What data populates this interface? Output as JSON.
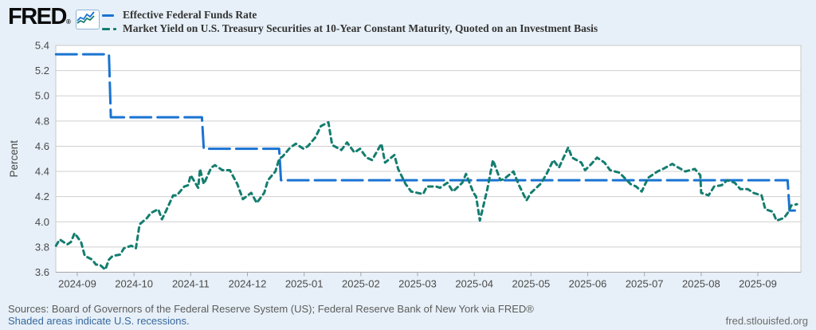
{
  "logo": {
    "text": "FRED",
    "reg": "®",
    "icon": "fred-sparkline-icon"
  },
  "legend": [
    {
      "label": "Effective Federal Funds Rate"
    },
    {
      "label": "Market Yield on U.S. Treasury Securities at 10-Year Constant Maturity, Quoted on an Investment Basis"
    }
  ],
  "footer": {
    "sources": "Sources: Board of Governors of the Federal Reserve System (US); Federal Reserve Bank of New York via FRED®",
    "recession_link": "Shaded areas indicate U.S. recessions.",
    "site": "fred.stlouisfed.org"
  },
  "colors": {
    "effr_blue": "#1a73d2",
    "treasury_teal": "#147d6f",
    "page_bg": "#e7f0f8",
    "plot_bg": "#ffffff",
    "gridline": "#cfcfcf",
    "axis_text": "#4a4a4a"
  },
  "chart_data": {
    "type": "line",
    "ylabel": "Percent",
    "ylim": [
      3.6,
      5.4
    ],
    "y_ticks": [
      3.6,
      3.8,
      4.0,
      4.2,
      4.4,
      4.6,
      4.8,
      5.0,
      5.2,
      5.4
    ],
    "x_ticks": [
      "2024-09",
      "2024-10",
      "2024-11",
      "2024-12",
      "2025-01",
      "2025-02",
      "2025-03",
      "2025-04",
      "2025-05",
      "2025-06",
      "2025-07",
      "2025-08",
      "2025-09"
    ],
    "x_range": [
      "2024-08-20",
      "2025-09-22"
    ],
    "grid": true,
    "legend_position": "top-left",
    "series": [
      {
        "name": "Effective Federal Funds Rate",
        "color": "#1a73d2",
        "style": "long-dash",
        "points": [
          [
            "2024-08-20",
            5.33
          ],
          [
            "2024-09-18",
            5.33
          ],
          [
            "2024-09-19",
            4.83
          ],
          [
            "2024-11-07",
            4.83
          ],
          [
            "2024-11-08",
            4.58
          ],
          [
            "2024-12-18",
            4.58
          ],
          [
            "2024-12-19",
            4.33
          ],
          [
            "2025-09-17",
            4.33
          ],
          [
            "2025-09-18",
            4.09
          ],
          [
            "2025-09-22",
            4.09
          ]
        ]
      },
      {
        "name": "Market Yield on U.S. Treasury Securities at 10-Year Constant Maturity, Quoted on an Investment Basis",
        "color": "#147d6f",
        "style": "short-dash",
        "points": [
          [
            "2024-08-20",
            3.81
          ],
          [
            "2024-08-22",
            3.86
          ],
          [
            "2024-08-26",
            3.82
          ],
          [
            "2024-08-28",
            3.84
          ],
          [
            "2024-08-30",
            3.91
          ],
          [
            "2024-09-03",
            3.84
          ],
          [
            "2024-09-05",
            3.73
          ],
          [
            "2024-09-09",
            3.7
          ],
          [
            "2024-09-11",
            3.66
          ],
          [
            "2024-09-13",
            3.66
          ],
          [
            "2024-09-16",
            3.62
          ],
          [
            "2024-09-18",
            3.7
          ],
          [
            "2024-09-20",
            3.73
          ],
          [
            "2024-09-24",
            3.74
          ],
          [
            "2024-09-26",
            3.79
          ],
          [
            "2024-09-30",
            3.81
          ],
          [
            "2024-10-02",
            3.79
          ],
          [
            "2024-10-04",
            3.98
          ],
          [
            "2024-10-08",
            4.03
          ],
          [
            "2024-10-10",
            4.07
          ],
          [
            "2024-10-14",
            4.1
          ],
          [
            "2024-10-16",
            4.02
          ],
          [
            "2024-10-18",
            4.08
          ],
          [
            "2024-10-22",
            4.21
          ],
          [
            "2024-10-24",
            4.21
          ],
          [
            "2024-10-28",
            4.28
          ],
          [
            "2024-10-30",
            4.29
          ],
          [
            "2024-11-01",
            4.37
          ],
          [
            "2024-11-05",
            4.27
          ],
          [
            "2024-11-06",
            4.42
          ],
          [
            "2024-11-08",
            4.3
          ],
          [
            "2024-11-12",
            4.43
          ],
          [
            "2024-11-14",
            4.45
          ],
          [
            "2024-11-18",
            4.41
          ],
          [
            "2024-11-20",
            4.41
          ],
          [
            "2024-11-22",
            4.41
          ],
          [
            "2024-11-26",
            4.3
          ],
          [
            "2024-11-29",
            4.18
          ],
          [
            "2024-12-03",
            4.23
          ],
          [
            "2024-12-06",
            4.15
          ],
          [
            "2024-12-10",
            4.23
          ],
          [
            "2024-12-12",
            4.33
          ],
          [
            "2024-12-16",
            4.4
          ],
          [
            "2024-12-18",
            4.5
          ],
          [
            "2024-12-20",
            4.52
          ],
          [
            "2024-12-24",
            4.59
          ],
          [
            "2024-12-27",
            4.62
          ],
          [
            "2024-12-31",
            4.58
          ],
          [
            "2025-01-03",
            4.6
          ],
          [
            "2025-01-07",
            4.67
          ],
          [
            "2025-01-10",
            4.76
          ],
          [
            "2025-01-14",
            4.79
          ],
          [
            "2025-01-16",
            4.61
          ],
          [
            "2025-01-21",
            4.57
          ],
          [
            "2025-01-24",
            4.63
          ],
          [
            "2025-01-28",
            4.55
          ],
          [
            "2025-01-31",
            4.58
          ],
          [
            "2025-02-04",
            4.51
          ],
          [
            "2025-02-07",
            4.49
          ],
          [
            "2025-02-12",
            4.62
          ],
          [
            "2025-02-14",
            4.47
          ],
          [
            "2025-02-19",
            4.53
          ],
          [
            "2025-02-21",
            4.42
          ],
          [
            "2025-02-25",
            4.3
          ],
          [
            "2025-02-28",
            4.24
          ],
          [
            "2025-03-04",
            4.22
          ],
          [
            "2025-03-06",
            4.28
          ],
          [
            "2025-03-11",
            4.28
          ],
          [
            "2025-03-13",
            4.27
          ],
          [
            "2025-03-17",
            4.31
          ],
          [
            "2025-03-20",
            4.24
          ],
          [
            "2025-03-25",
            4.31
          ],
          [
            "2025-03-27",
            4.38
          ],
          [
            "2025-03-31",
            4.23
          ],
          [
            "2025-04-02",
            4.2
          ],
          [
            "2025-04-04",
            4.01
          ],
          [
            "2025-04-08",
            4.26
          ],
          [
            "2025-04-11",
            4.49
          ],
          [
            "2025-04-15",
            4.33
          ],
          [
            "2025-04-17",
            4.34
          ],
          [
            "2025-04-22",
            4.4
          ],
          [
            "2025-04-25",
            4.29
          ],
          [
            "2025-04-29",
            4.17
          ],
          [
            "2025-05-01",
            4.23
          ],
          [
            "2025-05-06",
            4.3
          ],
          [
            "2025-05-09",
            4.37
          ],
          [
            "2025-05-13",
            4.49
          ],
          [
            "2025-05-16",
            4.43
          ],
          [
            "2025-05-21",
            4.59
          ],
          [
            "2025-05-23",
            4.51
          ],
          [
            "2025-05-28",
            4.47
          ],
          [
            "2025-05-30",
            4.41
          ],
          [
            "2025-06-03",
            4.46
          ],
          [
            "2025-06-06",
            4.51
          ],
          [
            "2025-06-10",
            4.47
          ],
          [
            "2025-06-13",
            4.41
          ],
          [
            "2025-06-18",
            4.39
          ],
          [
            "2025-06-24",
            4.3
          ],
          [
            "2025-06-27",
            4.28
          ],
          [
            "2025-06-30",
            4.24
          ],
          [
            "2025-07-03",
            4.35
          ],
          [
            "2025-07-08",
            4.4
          ],
          [
            "2025-07-11",
            4.42
          ],
          [
            "2025-07-16",
            4.46
          ],
          [
            "2025-07-18",
            4.44
          ],
          [
            "2025-07-23",
            4.4
          ],
          [
            "2025-07-28",
            4.42
          ],
          [
            "2025-07-31",
            4.37
          ],
          [
            "2025-08-01",
            4.23
          ],
          [
            "2025-08-05",
            4.21
          ],
          [
            "2025-08-08",
            4.28
          ],
          [
            "2025-08-12",
            4.29
          ],
          [
            "2025-08-15",
            4.33
          ],
          [
            "2025-08-19",
            4.31
          ],
          [
            "2025-08-22",
            4.26
          ],
          [
            "2025-08-26",
            4.26
          ],
          [
            "2025-08-29",
            4.23
          ],
          [
            "2025-09-03",
            4.21
          ],
          [
            "2025-09-05",
            4.1
          ],
          [
            "2025-09-09",
            4.08
          ],
          [
            "2025-09-11",
            4.01
          ],
          [
            "2025-09-15",
            4.03
          ],
          [
            "2025-09-17",
            4.07
          ],
          [
            "2025-09-19",
            4.13
          ],
          [
            "2025-09-22",
            4.14
          ]
        ]
      }
    ]
  }
}
